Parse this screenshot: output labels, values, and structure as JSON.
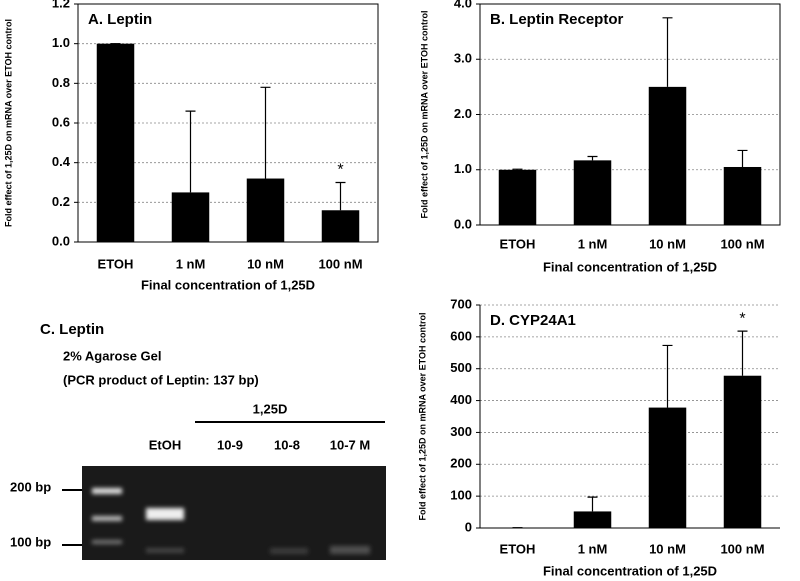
{
  "chart_data": [
    {
      "type": "bar",
      "title": "A. Leptin",
      "y_label": "Fold effect of 1,25D on mRNA over ETOH control",
      "x_label": "Final concentration of 1,25D",
      "categories": [
        "ETOH",
        "1 nM",
        "10 nM",
        "100 nM"
      ],
      "values": [
        1.0,
        0.25,
        0.32,
        0.16
      ],
      "errors": [
        0.0,
        0.41,
        0.46,
        0.14
      ],
      "color": "#000000",
      "ylim": [
        0,
        1.2
      ],
      "yticks": [
        {
          "value": 0,
          "label": "0.0"
        },
        0.2,
        0.4,
        0.6,
        0.8,
        {
          "value": 1,
          "label": "1.0"
        },
        1.2
      ],
      "grid": true,
      "frame": true,
      "annotations": [
        {
          "category": "100 nM",
          "text": "*"
        }
      ]
    },
    {
      "type": "bar",
      "title": "B. Leptin Receptor",
      "y_label": "Fold effect of 1,25D on mRNA over ETOH control",
      "x_label": "Final concentration of 1,25D",
      "categories": [
        "ETOH",
        "1 nM",
        "10 nM",
        "100 nM"
      ],
      "values": [
        1.0,
        1.17,
        2.5,
        1.05
      ],
      "errors": [
        0.01,
        0.07,
        1.25,
        0.3
      ],
      "color": "#000000",
      "ylim": [
        0,
        4
      ],
      "yticks": [
        {
          "value": 0,
          "label": "0.0"
        },
        {
          "value": 1,
          "label": "1.0"
        },
        {
          "value": 2,
          "label": "2.0"
        },
        {
          "value": 3,
          "label": "3.0"
        },
        {
          "value": 4,
          "label": "4.0"
        }
      ],
      "grid": true,
      "frame": true,
      "annotations": []
    },
    {
      "type": "bar",
      "title": "D. CYP24A1",
      "y_label": "Fold effect of 1,25D on mRNA over ETOH control",
      "x_label": "Final concentration of 1,25D",
      "categories": [
        "ETOH",
        "1 nM",
        "10 nM",
        "100 nM"
      ],
      "values": [
        1,
        52,
        378,
        478
      ],
      "errors": [
        0,
        45,
        195,
        140
      ],
      "color": "#000000",
      "ylim": [
        0,
        700
      ],
      "yticks": [
        0,
        100,
        200,
        300,
        400,
        500,
        600,
        700
      ],
      "grid": true,
      "frame": false,
      "annotations": [
        {
          "category": "100 nM",
          "text": "*"
        }
      ]
    }
  ],
  "gel": {
    "title": "C. Leptin",
    "line1": "2% Agarose Gel",
    "line2": "(PCR product of Leptin: 137 bp)",
    "treatment": "1,25D",
    "lanes": [
      "EtOH",
      "10-9",
      "10-8",
      "10-7 M"
    ],
    "markers": [
      "200 bp",
      "100 bp"
    ]
  }
}
